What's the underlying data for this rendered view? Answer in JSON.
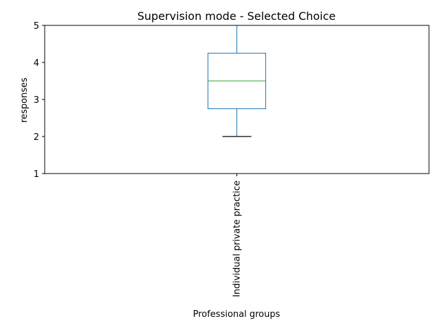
{
  "chart_data": {
    "type": "box",
    "title": "Supervision mode - Selected Choice",
    "xlabel": "Professional groups",
    "ylabel": "responses",
    "ylim": [
      1,
      5
    ],
    "yticks": [
      1,
      2,
      3,
      4,
      5
    ],
    "grid": false,
    "legend": "none",
    "categories": [
      "Individual private practice"
    ],
    "boxes": [
      {
        "category": "Individual private practice",
        "whisker_low": 2,
        "q1": 2.75,
        "median": 3.5,
        "q3": 4.25,
        "whisker_high": 5
      }
    ],
    "colors": {
      "box": "#1f77b4",
      "median": "#2ca02c",
      "whisker_cap_low": "#000000",
      "axes": "#000000"
    }
  }
}
